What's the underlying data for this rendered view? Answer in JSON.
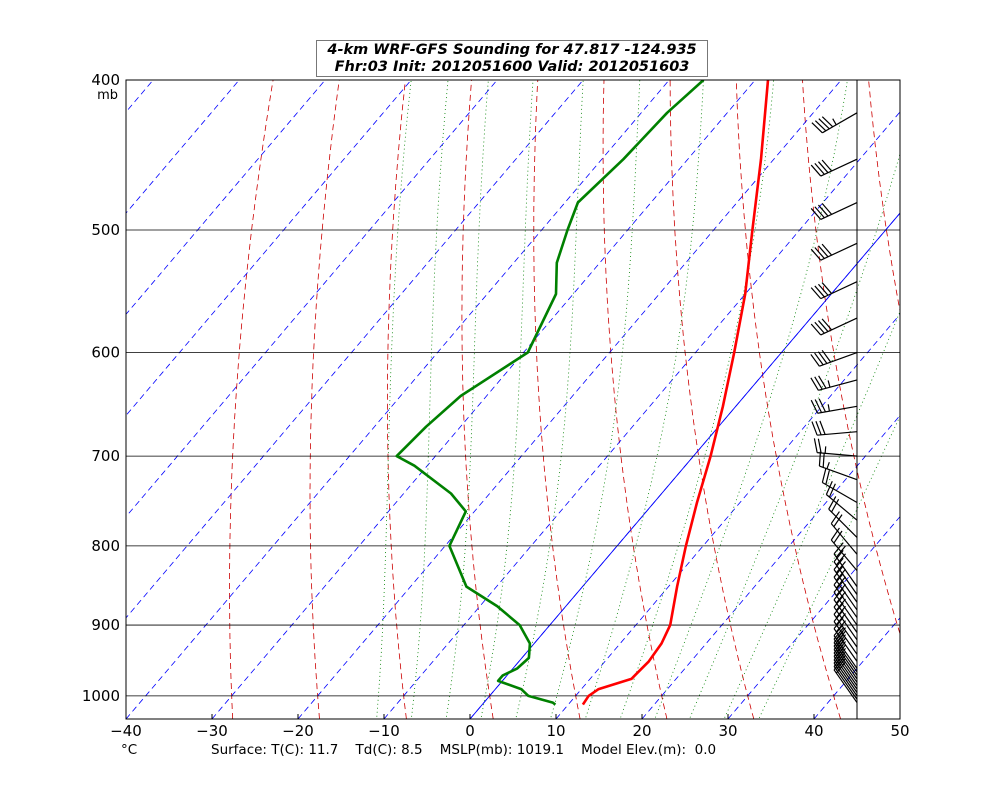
{
  "title": {
    "line1": "4-km WRF-GFS Sounding for 47.817 -124.935",
    "line2": "Fhr:03 Init: 2012051600 Valid: 2012051603"
  },
  "footer": {
    "unit_label": "°C",
    "surface": "Surface: T(C): 11.7    Td(C): 8.5    MSLP(mb): 1019.1    Model Elev.(m):  0.0"
  },
  "colors": {
    "temperature": "#ff0000",
    "dewpoint": "#008000",
    "isotherm": "#0000ff",
    "dry_adiabat": "#cc0000",
    "moist_adiabat": "#008000",
    "mixing_ratio": "#0000ff",
    "isobar": "#000000",
    "wind_barb": "#000000"
  },
  "chart_data": {
    "type": "skew-t",
    "xlabel": "°C",
    "ylabel": "mb",
    "xlim": [
      -40,
      50
    ],
    "ylim": [
      1035,
      400
    ],
    "x_ticks": [
      -40,
      -30,
      -20,
      -10,
      0,
      10,
      20,
      30,
      40,
      50
    ],
    "y_ticks": [
      1000,
      900,
      800,
      700,
      600,
      500,
      400
    ],
    "y_top_unit_label": "mb",
    "grid": true,
    "temperature": {
      "pressure": [
        1013,
        1000,
        990,
        975,
        950,
        925,
        900,
        850,
        800,
        750,
        700,
        650,
        600,
        550,
        500,
        450,
        400
      ],
      "values": [
        11.7,
        11.5,
        12,
        14.8,
        15.1,
        14.8,
        14.0,
        11.0,
        8.0,
        5.0,
        2.0,
        -1.5,
        -5.5,
        -10.0,
        -15.5,
        -21.5,
        -28.5
      ]
    },
    "dewpoint": {
      "pressure": [
        1013,
        1010,
        1000,
        990,
        978,
        970,
        960,
        945,
        925,
        900,
        875,
        850,
        800,
        760,
        740,
        710,
        700,
        670,
        640,
        600,
        550,
        525,
        500,
        480,
        450,
        420,
        400
      ],
      "values": [
        8.5,
        8.0,
        4.5,
        3.0,
        -0.5,
        -0.5,
        0.5,
        0.8,
        -0.5,
        -3.5,
        -8.0,
        -13.5,
        -19.5,
        -21.0,
        -24.5,
        -31.5,
        -34.5,
        -34.0,
        -33.0,
        -29.5,
        -32.0,
        -35.0,
        -37.0,
        -38.5,
        -37.5,
        -37.0,
        -36.0
      ]
    },
    "wind_barbs": {
      "pressure": [
        1010,
        1005,
        1000,
        995,
        990,
        985,
        980,
        975,
        970,
        965,
        960,
        950,
        940,
        930,
        920,
        910,
        900,
        890,
        880,
        870,
        860,
        850,
        830,
        810,
        790,
        770,
        750,
        725,
        700,
        675,
        650,
        625,
        600,
        570,
        540,
        510,
        480,
        450,
        420
      ],
      "direction_deg": [
        325,
        325,
        325,
        325,
        325,
        325,
        325,
        325,
        325,
        325,
        325,
        325,
        325,
        325,
        325,
        325,
        325,
        325,
        325,
        325,
        325,
        325,
        320,
        320,
        315,
        310,
        300,
        290,
        275,
        265,
        260,
        255,
        250,
        245,
        245,
        245,
        245,
        245,
        240
      ],
      "speed_kt": [
        20,
        20,
        20,
        20,
        20,
        20,
        20,
        20,
        20,
        20,
        20,
        20,
        20,
        20,
        20,
        20,
        20,
        20,
        20,
        20,
        20,
        20,
        20,
        20,
        20,
        20,
        20,
        25,
        25,
        30,
        35,
        35,
        40,
        40,
        40,
        40,
        40,
        40,
        45
      ]
    }
  }
}
